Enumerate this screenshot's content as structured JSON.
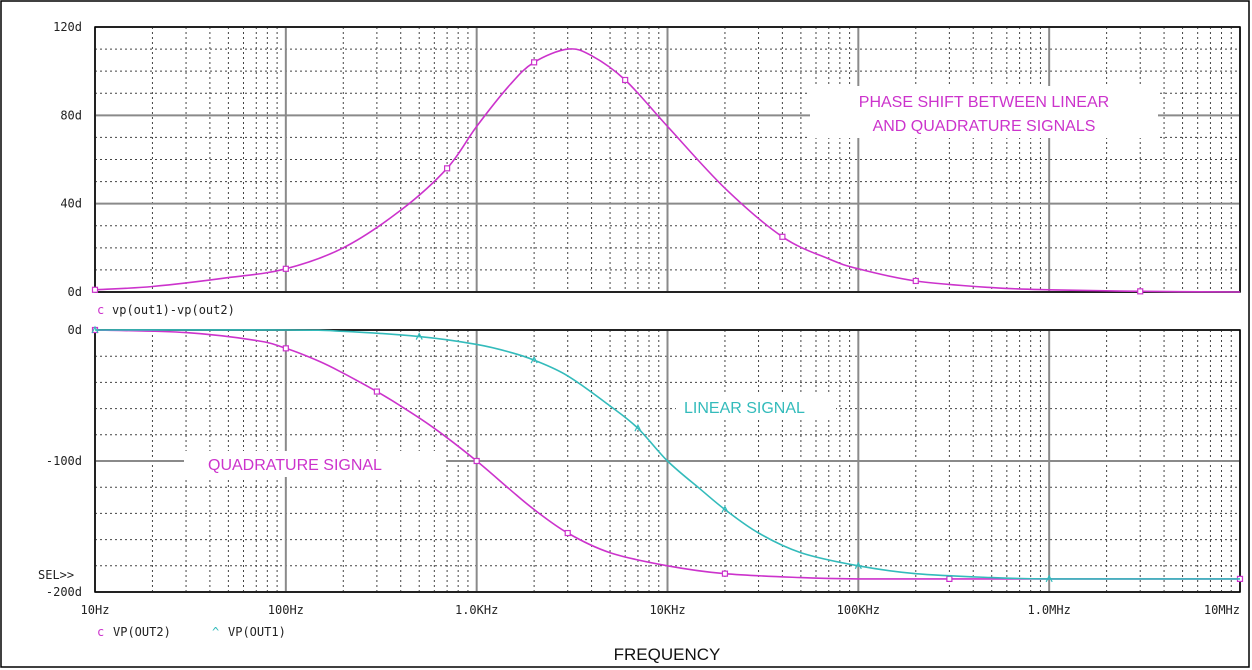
{
  "colors": {
    "magenta": "#cc33cc",
    "cyan": "#33bbbb",
    "grid_major": "#8a8a8a",
    "grid_minor": "#444444",
    "border": "#000000"
  },
  "x_axis": {
    "scale": "log",
    "title": "FREQUENCY",
    "range": [
      10,
      10000000
    ],
    "ticks": [
      {
        "value": 10,
        "label": "10Hz"
      },
      {
        "value": 100,
        "label": "100Hz"
      },
      {
        "value": 1000,
        "label": "1.0KHz"
      },
      {
        "value": 10000,
        "label": "10KHz"
      },
      {
        "value": 100000,
        "label": "100KHz"
      },
      {
        "value": 1000000,
        "label": "1.0MHz"
      },
      {
        "value": 10000000,
        "label": "10MHz"
      }
    ]
  },
  "top_legend": {
    "symbol": "c",
    "label": "vp(out1)-vp(out2)"
  },
  "bottom_legend": [
    {
      "symbol": "c",
      "label": "VP(OUT2)"
    },
    {
      "symbol": "^",
      "label": "VP(OUT1)"
    }
  ],
  "sel_marker": "SEL>>",
  "annotations": {
    "top_line1": "PHASE SHIFT BETWEEN LINEAR",
    "top_line2": "AND QUADRATURE SIGNALS",
    "linear": "LINEAR SIGNAL",
    "quadrature": "QUADRATURE SIGNAL"
  },
  "chart_data": [
    {
      "type": "line",
      "y_scale": "linear",
      "ylim": [
        0,
        120
      ],
      "yticks": [
        {
          "value": 0,
          "label": "0d"
        },
        {
          "value": 40,
          "label": "40d"
        },
        {
          "value": 80,
          "label": "80d"
        },
        {
          "value": 120,
          "label": "120d"
        }
      ],
      "series": [
        {
          "name": "vp(out1)-vp(out2)",
          "color": "#cc33cc",
          "x": [
            10,
            20,
            50,
            100,
            200,
            400,
            700,
            1000,
            1500,
            2000,
            3000,
            4000,
            6000,
            10000,
            20000,
            40000,
            70000,
            100000,
            200000,
            500000,
            1000000,
            3000000,
            10000000
          ],
          "y": [
            1,
            2.5,
            6.5,
            10.5,
            20,
            37,
            56,
            75,
            94,
            104,
            110,
            107,
            96,
            75,
            47,
            25,
            15,
            10.5,
            5,
            2,
            1,
            0.3,
            0
          ]
        }
      ]
    },
    {
      "type": "line",
      "y_scale": "linear",
      "ylim": [
        -200,
        0
      ],
      "yticks": [
        {
          "value": 0,
          "label": "0d"
        },
        {
          "value": -100,
          "label": "-100d"
        },
        {
          "value": -200,
          "label": "-200d"
        }
      ],
      "series": [
        {
          "name": "VP(OUT2)",
          "color": "#cc33cc",
          "x": [
            10,
            30,
            70,
            100,
            150,
            200,
            300,
            400,
            600,
            1000,
            1500,
            2000,
            3000,
            5000,
            10000,
            20000,
            50000,
            100000,
            300000,
            1000000,
            3000000,
            10000000
          ],
          "y": [
            0,
            -2,
            -8,
            -14,
            -24,
            -33,
            -47,
            -58,
            -75,
            -100,
            -122,
            -137,
            -155,
            -170,
            -180,
            -186,
            -189,
            -190,
            -190,
            -190,
            -190,
            -190
          ]
        },
        {
          "name": "VP(OUT1)",
          "color": "#33bbbb",
          "x": [
            10,
            100,
            200,
            500,
            1000,
            1500,
            2000,
            3000,
            5000,
            7000,
            10000,
            15000,
            20000,
            30000,
            50000,
            100000,
            200000,
            500000,
            1000000,
            3000000,
            10000000
          ],
          "y": [
            0,
            0,
            -1,
            -5,
            -11,
            -17,
            -23,
            -35,
            -58,
            -75,
            -100,
            -122,
            -137,
            -155,
            -170,
            -180,
            -186,
            -189,
            -190,
            -190,
            -190
          ]
        }
      ]
    }
  ]
}
